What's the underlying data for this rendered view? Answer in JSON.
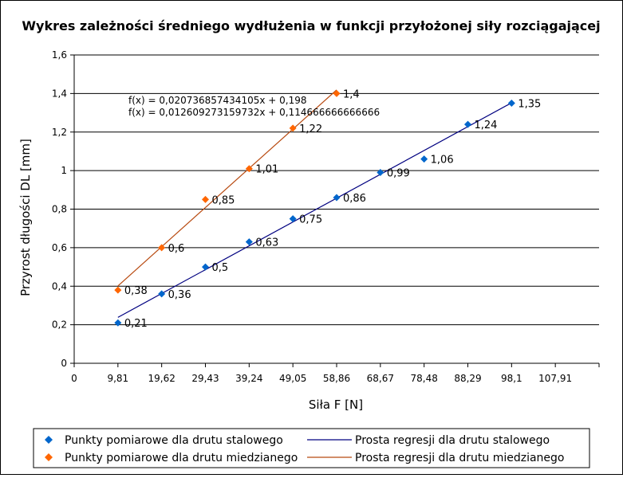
{
  "chart_data": {
    "type": "scatter",
    "title": "Wykres zależności średniego wydłużenia w funkcji przyłożonej siły rozciągającej",
    "xlabel": "Siła F [N]",
    "ylabel": "Przyrost długości DL [mm]",
    "x_ticks": [
      "0",
      "9,81",
      "19,62",
      "29,43",
      "39,24",
      "49,05",
      "58,86",
      "68,67",
      "78,48",
      "88,29",
      "98,1",
      "107,91"
    ],
    "y_ticks": [
      "0",
      "0,2",
      "0,4",
      "0,6",
      "0,8",
      "1",
      "1,2",
      "1,4",
      "1,6"
    ],
    "xlim": [
      0,
      117.72
    ],
    "ylim": [
      0,
      1.6
    ],
    "grid": "horizontal",
    "legend_position": "bottom",
    "series": [
      {
        "name": "Punkty pomiarowe dla drutu stalowego",
        "color": "#0066cc",
        "marker": "diamond",
        "x": [
          9.81,
          19.62,
          29.43,
          39.24,
          49.05,
          58.86,
          68.67,
          78.48,
          88.29,
          98.1
        ],
        "y": [
          0.21,
          0.36,
          0.5,
          0.63,
          0.75,
          0.86,
          0.99,
          1.06,
          1.24,
          1.35
        ],
        "labels": [
          "0,21",
          "0,36",
          "0,5",
          "0,63",
          "0,75",
          "0,86",
          "0,99",
          "1,06",
          "1,24",
          "1,35"
        ]
      },
      {
        "name": "Punkty pomiarowe dla drutu miedzianego",
        "color": "#ff6600",
        "marker": "diamond",
        "x": [
          9.81,
          19.62,
          29.43,
          39.24,
          49.05,
          58.86
        ],
        "y": [
          0.38,
          0.6,
          0.85,
          1.01,
          1.22,
          1.4
        ],
        "labels": [
          "0,38",
          "0,6",
          "0,85",
          "1,01",
          "1,22",
          "1,4"
        ]
      }
    ],
    "regressions": [
      {
        "name": "Prosta regresji dla drutu stalowego",
        "color": "#000080",
        "slope": 0.012609273159732,
        "intercept": 0.114666666666666,
        "x_range": [
          9.81,
          98.1
        ]
      },
      {
        "name": "Prosta regresji dla drutu miedzianego",
        "color": "#b84a10",
        "slope": 0.020736857434105,
        "intercept": 0.198,
        "x_range": [
          9.81,
          58.86
        ]
      }
    ],
    "equations": [
      "f(x) = 0,020736857434105x + 0,198",
      "f(x) = 0,012609273159732x + 0,114666666666666"
    ]
  }
}
